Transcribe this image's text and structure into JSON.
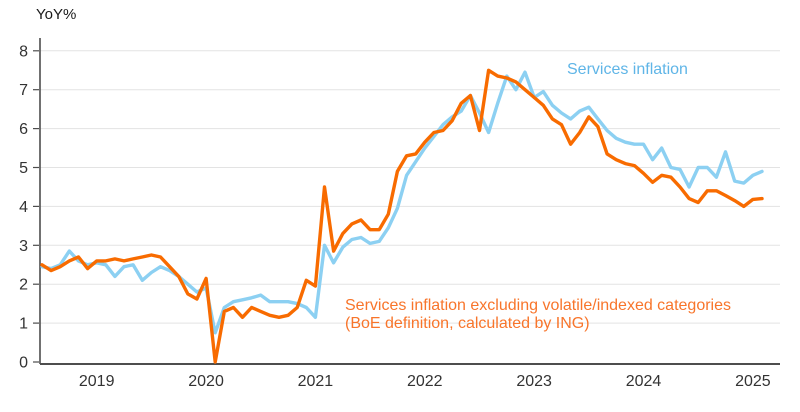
{
  "chart": {
    "y_axis_title": "YoY%",
    "legend": {
      "blue_label": "Services inflation",
      "orange_label_line1": "Services inflation excluding volatile/indexed categories",
      "orange_label_line2": "(BoE definition, calculated by ING)"
    },
    "colors": {
      "blue_line": "#8CD0F2",
      "blue_label_text": "#5FB5E7",
      "orange_line": "#F86B00",
      "orange_label_text": "#F8752B",
      "grid": "#E3E3E3",
      "axis": "#4D4D4D",
      "tick_text": "#333333"
    }
  },
  "chart_data": {
    "type": "line",
    "title": "",
    "xlabel": "",
    "ylabel": "YoY%",
    "ylim": [
      0,
      8
    ],
    "y_ticks": [
      0,
      1,
      2,
      3,
      4,
      5,
      6,
      7,
      8
    ],
    "grid": "horizontal",
    "legend_position": "inline-annotations",
    "frequency": "monthly",
    "x_start": "2018-07",
    "x_end": "2025-02",
    "x_tick_labels": [
      "2019",
      "2020",
      "2021",
      "2022",
      "2023",
      "2024",
      "2025"
    ],
    "x_tick_month_indices": [
      6,
      18,
      30,
      42,
      54,
      66,
      78
    ],
    "series": [
      {
        "name": "Services inflation",
        "color": "#8CD0F2",
        "values": [
          2.45,
          2.4,
          2.5,
          2.85,
          2.6,
          2.5,
          2.55,
          2.5,
          2.2,
          2.45,
          2.5,
          2.1,
          2.3,
          2.45,
          2.35,
          2.2,
          2.0,
          1.8,
          1.9,
          0.75,
          1.4,
          1.55,
          1.6,
          1.65,
          1.72,
          1.55,
          1.55,
          1.55,
          1.5,
          1.4,
          1.15,
          3.0,
          2.55,
          2.95,
          3.15,
          3.2,
          3.05,
          3.1,
          3.45,
          3.95,
          4.8,
          5.15,
          5.5,
          5.8,
          6.1,
          6.3,
          6.45,
          6.85,
          6.4,
          5.9,
          6.65,
          7.35,
          7.0,
          7.45,
          6.8,
          6.95,
          6.6,
          6.4,
          6.25,
          6.45,
          6.55,
          6.25,
          5.95,
          5.75,
          5.65,
          5.6,
          5.6,
          5.2,
          5.5,
          5.0,
          4.95,
          4.5,
          5.0,
          5.0,
          4.75,
          5.4,
          4.65,
          4.6,
          4.8,
          4.9
        ]
      },
      {
        "name": "Services inflation excluding volatile/indexed categories (BoE definition, calculated by ING)",
        "color": "#F86B00",
        "values": [
          2.5,
          2.35,
          2.45,
          2.6,
          2.7,
          2.4,
          2.6,
          2.6,
          2.65,
          2.6,
          2.65,
          2.7,
          2.75,
          2.7,
          2.45,
          2.2,
          1.75,
          1.62,
          2.15,
          0.0,
          1.3,
          1.4,
          1.15,
          1.4,
          1.3,
          1.2,
          1.15,
          1.2,
          1.4,
          2.1,
          1.95,
          4.5,
          2.85,
          3.3,
          3.55,
          3.65,
          3.4,
          3.4,
          3.8,
          4.9,
          5.3,
          5.35,
          5.65,
          5.9,
          5.95,
          6.2,
          6.65,
          6.85,
          5.95,
          7.5,
          7.35,
          7.3,
          7.2,
          7.0,
          6.8,
          6.6,
          6.25,
          6.1,
          5.6,
          5.9,
          6.3,
          6.05,
          5.35,
          5.2,
          5.1,
          5.05,
          4.85,
          4.62,
          4.8,
          4.75,
          4.5,
          4.2,
          4.1,
          4.4,
          4.4,
          4.28,
          4.15,
          4.0,
          4.18,
          4.2
        ]
      }
    ]
  }
}
